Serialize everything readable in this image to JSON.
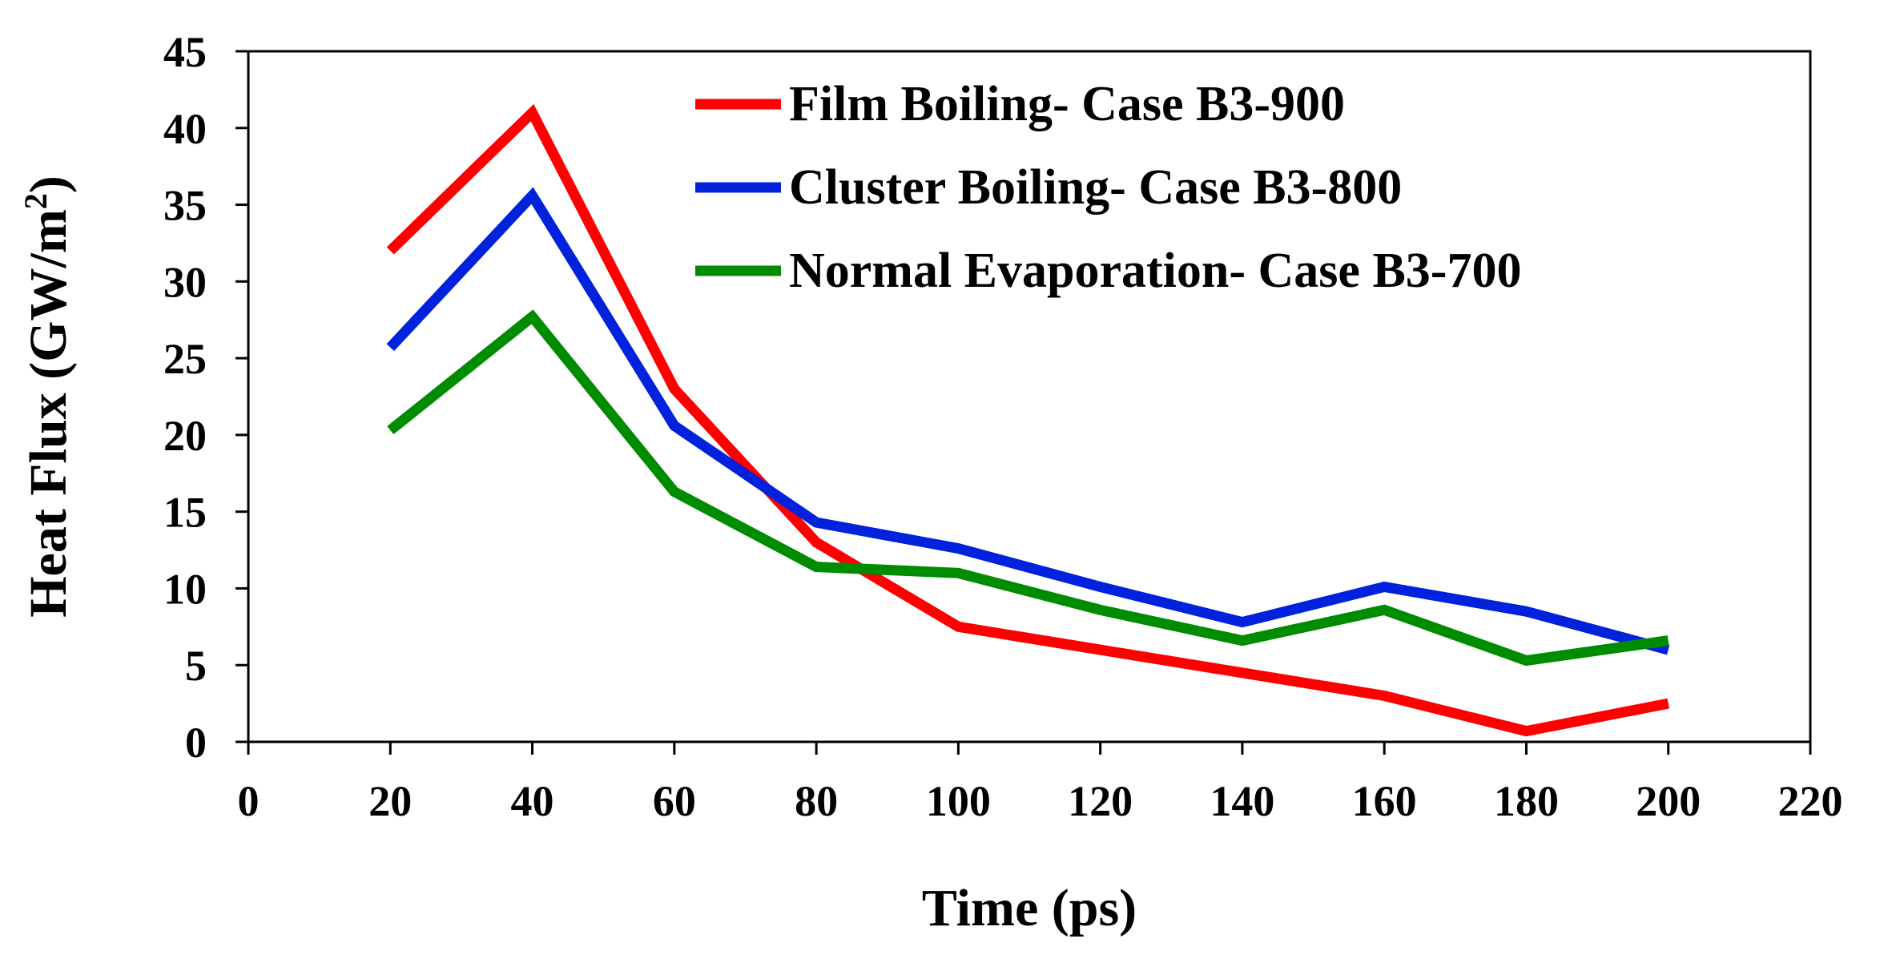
{
  "chart_data": {
    "type": "line",
    "title": "",
    "xlabel": "Time (ps)",
    "ylabel_main": "Heat Flux (GW/m",
    "ylabel_sup": "2",
    "ylabel_close": ")",
    "xlim": [
      0,
      220
    ],
    "ylim": [
      0,
      45
    ],
    "xticks": [
      0,
      20,
      40,
      60,
      80,
      100,
      120,
      140,
      160,
      180,
      200,
      220
    ],
    "yticks": [
      0,
      5,
      10,
      15,
      20,
      25,
      30,
      35,
      40,
      45
    ],
    "grid": false,
    "legend_position": "top-right",
    "x": [
      20,
      40,
      60,
      80,
      100,
      120,
      140,
      160,
      180,
      200
    ],
    "series": [
      {
        "name": "Film Boiling- Case B3-900",
        "color": "#ff0000",
        "values": [
          32.0,
          41.0,
          23.0,
          13.0,
          7.5,
          6.0,
          4.5,
          3.0,
          0.7,
          2.5
        ]
      },
      {
        "name": "Cluster Boiling- Case B3-800",
        "color": "#0022dd",
        "values": [
          25.7,
          35.6,
          20.6,
          14.3,
          12.6,
          10.1,
          7.8,
          10.1,
          8.5,
          6.0
        ]
      },
      {
        "name": "Normal Evaporation- Case B3-700",
        "color": "#008c00",
        "values": [
          20.3,
          27.7,
          16.3,
          11.4,
          11.0,
          8.6,
          6.6,
          8.6,
          5.3,
          6.6
        ]
      }
    ]
  }
}
